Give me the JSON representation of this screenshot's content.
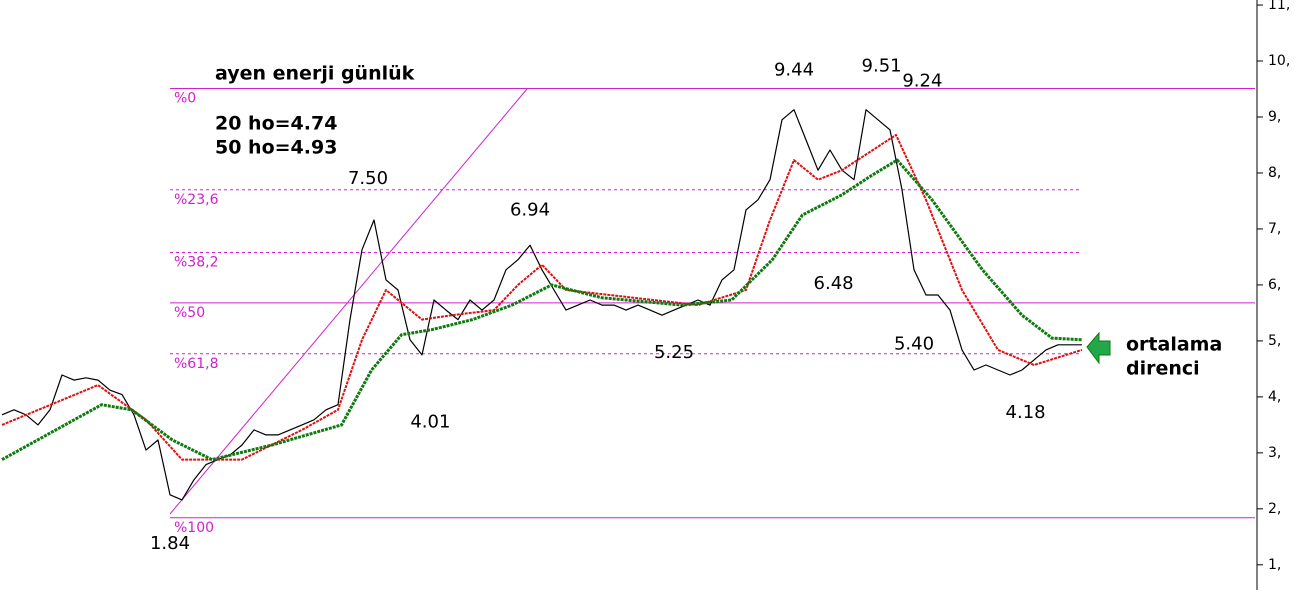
{
  "chart_data": {
    "type": "line",
    "title": "ayen enerji günlük",
    "notes": [
      "20 ho=4.74",
      "50 ho=4.93"
    ],
    "callout": [
      "ortalama",
      "direnci"
    ],
    "ylim": [
      0.55,
      11.09
    ],
    "yticks": [
      {
        "value": 11,
        "label": "11,"
      },
      {
        "value": 10,
        "label": "10,"
      },
      {
        "value": 9,
        "label": "9,"
      },
      {
        "value": 8,
        "label": "8,"
      },
      {
        "value": 7,
        "label": "7,"
      },
      {
        "value": 6,
        "label": "6,"
      },
      {
        "value": 5,
        "label": "5,"
      },
      {
        "value": 4,
        "label": "4,"
      },
      {
        "value": 3,
        "label": "3,"
      },
      {
        "value": 2,
        "label": "2,"
      },
      {
        "value": 1,
        "label": "1,"
      }
    ],
    "fib_levels": [
      {
        "label": "%0",
        "value": 9.51,
        "style": "solid"
      },
      {
        "label": "%23,6",
        "value": 7.7,
        "style": "dashed"
      },
      {
        "label": "%38,2",
        "value": 6.58,
        "style": "dashed"
      },
      {
        "label": "%50",
        "value": 5.68,
        "style": "solid"
      },
      {
        "label": "%61,8",
        "value": 4.77,
        "style": "dashed"
      },
      {
        "label": "%100",
        "value": 1.84,
        "style": "solid"
      }
    ],
    "fib_color": "#d020d0",
    "series": [
      {
        "color": "#000000",
        "width": 1.2,
        "values": [
          3.68,
          3.77,
          3.68,
          3.5,
          3.77,
          4.39,
          4.3,
          4.34,
          4.3,
          4.12,
          4.04,
          3.68,
          3.05,
          3.23,
          2.25,
          2.16,
          2.52,
          2.79,
          2.88,
          2.96,
          3.14,
          3.41,
          3.32,
          3.32,
          3.41,
          3.5,
          3.59,
          3.77,
          3.86,
          5.38,
          6.63,
          7.16,
          6.09,
          5.91,
          5.02,
          4.75,
          5.73,
          5.55,
          5.38,
          5.73,
          5.55,
          5.73,
          6.27,
          6.45,
          6.71,
          6.27,
          5.91,
          5.55,
          5.64,
          5.73,
          5.64,
          5.64,
          5.55,
          5.64,
          5.55,
          5.46,
          5.55,
          5.64,
          5.73,
          5.64,
          6.09,
          6.27,
          7.34,
          7.52,
          7.88,
          8.95,
          9.13,
          8.59,
          8.05,
          8.41,
          8.05,
          7.88,
          9.13,
          8.95,
          8.77,
          7.7,
          6.27,
          5.82,
          5.82,
          5.55,
          4.84,
          4.48,
          4.57,
          4.48,
          4.39,
          4.48,
          4.66,
          4.84,
          4.93,
          4.93,
          4.93
        ]
      },
      {
        "color": "#e01010",
        "width": 2,
        "x": [
          0,
          8,
          12,
          15,
          20,
          25,
          28,
          30,
          32,
          35,
          37.5,
          41,
          43,
          45,
          47,
          58,
          62,
          64,
          66,
          68,
          70,
          74.5,
          77,
          80,
          83,
          86,
          90
        ],
        "values": [
          3.5,
          4.21,
          3.59,
          2.88,
          2.88,
          3.41,
          3.77,
          5.02,
          5.91,
          5.38,
          5.46,
          5.55,
          6.0,
          6.36,
          5.91,
          5.64,
          5.91,
          7.16,
          8.23,
          7.88,
          8.05,
          8.68,
          7.52,
          5.91,
          4.84,
          4.57,
          4.84
        ]
      },
      {
        "color": "#0f7a0f",
        "width": 3,
        "x": [
          0,
          8.3,
          10.8,
          14.2,
          17.5,
          22.5,
          28.3,
          30.8,
          33.3,
          35.8,
          39.2,
          42.5,
          45.8,
          50,
          56.7,
          60.8,
          64.2,
          66.7,
          70,
          72.5,
          74.6,
          77.5,
          81.7,
          85,
          87.5,
          90
        ],
        "values": [
          2.88,
          3.86,
          3.77,
          3.23,
          2.88,
          3.14,
          3.5,
          4.48,
          5.11,
          5.2,
          5.38,
          5.64,
          6.0,
          5.77,
          5.64,
          5.73,
          6.45,
          7.25,
          7.61,
          7.96,
          8.23,
          7.52,
          6.27,
          5.46,
          5.05,
          5.02
        ]
      }
    ],
    "annotations": [
      {
        "label": "1.84",
        "value": 1.84,
        "x": 14,
        "side": "below"
      },
      {
        "label": "7.50",
        "value": 7.5,
        "x": 30.5,
        "side": "above"
      },
      {
        "label": "4.01",
        "value": 4.01,
        "x": 35.7,
        "side": "below"
      },
      {
        "label": "6.94",
        "value": 6.94,
        "x": 44,
        "side": "above"
      },
      {
        "label": "5.25",
        "value": 5.25,
        "x": 56,
        "side": "below"
      },
      {
        "label": "9.44",
        "value": 9.44,
        "x": 66,
        "side": "above"
      },
      {
        "label": "6.48",
        "value": 6.48,
        "x": 69.3,
        "side": "below"
      },
      {
        "label": "9.51",
        "value": 9.51,
        "x": 73.3,
        "side": "above"
      },
      {
        "label": "9.24",
        "value": 9.24,
        "x": 76.7,
        "side": "above"
      },
      {
        "label": "5.40",
        "value": 5.4,
        "x": 76,
        "side": "below"
      },
      {
        "label": "4.18",
        "value": 4.18,
        "x": 85.3,
        "side": "below"
      }
    ]
  }
}
